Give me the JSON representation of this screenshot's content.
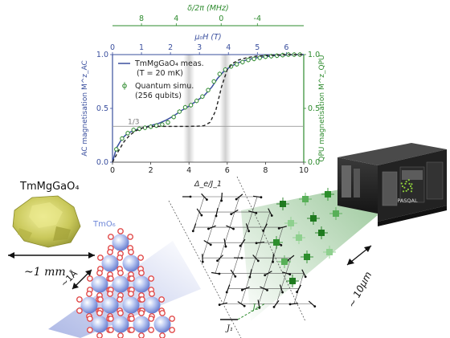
{
  "chart_data": {
    "type": "line",
    "x_bottom": {
      "label": "Δ_e/J_1",
      "ticks": [
        "0",
        "2",
        "4",
        "6",
        "8",
        "10"
      ],
      "range": [
        0,
        10
      ]
    },
    "x_top_field": {
      "label": "μ₀H (T)",
      "ticks": [
        "0",
        "1",
        "2",
        "3",
        "4",
        "5",
        "6"
      ],
      "range": [
        0,
        6.6
      ]
    },
    "x_top_freq": {
      "label": "δ/2π (MHz)",
      "ticks": [
        "8",
        "4",
        "0",
        "-4"
      ]
    },
    "y_left": {
      "label": "AC magnetisation M^z_AC",
      "ticks": [
        "0.0",
        "0.5",
        "1.0"
      ],
      "range": [
        0,
        1
      ]
    },
    "y_right": {
      "label": "QPU magnetisation M^z_QPU",
      "ticks": [
        "0.0",
        "0.5",
        "1.0"
      ],
      "range": [
        0,
        1
      ]
    },
    "plateau_label": "1/3",
    "legend": {
      "meas_line1": "TmMgGaO₄ meas.",
      "meas_line2": "(T = 20 mK)",
      "sim_line1": "Quantum simu.",
      "sim_line2": "(256 qubits)"
    },
    "series": [
      {
        "name": "TmMgGaO₄ meas.",
        "style": "solid",
        "color": "#3a4f9e",
        "x": [
          0,
          0.2,
          0.5,
          0.8,
          1.2,
          1.6,
          2.0,
          2.4,
          2.8,
          3.2,
          3.6,
          4.0,
          4.4,
          4.8,
          5.2,
          5.5,
          5.8,
          6.1,
          6.5,
          7.0,
          7.5,
          8.0,
          8.5,
          9.0,
          9.5,
          10
        ],
        "y": [
          0,
          0.13,
          0.22,
          0.27,
          0.3,
          0.32,
          0.34,
          0.36,
          0.39,
          0.43,
          0.48,
          0.52,
          0.57,
          0.62,
          0.7,
          0.78,
          0.84,
          0.88,
          0.92,
          0.95,
          0.97,
          0.98,
          0.99,
          0.995,
          1.0,
          1.0
        ]
      },
      {
        "name": "Quantum simu.",
        "style": "markers",
        "color": "#2e8b2e",
        "x": [
          0.2,
          0.5,
          0.8,
          1.1,
          1.4,
          1.7,
          2.0,
          2.3,
          2.6,
          2.9,
          3.2,
          3.5,
          3.8,
          4.1,
          4.4,
          4.7,
          5.0,
          5.3,
          5.6,
          5.9,
          6.2,
          6.5,
          6.8,
          7.1,
          7.4,
          7.7,
          8.0,
          8.3,
          8.6,
          8.9,
          9.2,
          9.5,
          9.8
        ],
        "y": [
          0.12,
          0.22,
          0.27,
          0.3,
          0.31,
          0.32,
          0.33,
          0.34,
          0.35,
          0.37,
          0.42,
          0.47,
          0.51,
          0.53,
          0.57,
          0.61,
          0.67,
          0.75,
          0.82,
          0.86,
          0.89,
          0.91,
          0.93,
          0.95,
          0.96,
          0.97,
          0.98,
          0.985,
          0.99,
          0.995,
          1.0,
          1.0,
          1.0
        ]
      },
      {
        "style": "dashed",
        "color": "#222222",
        "x": [
          0,
          0.3,
          0.6,
          0.9,
          1.2,
          1.6,
          2.0,
          2.5,
          3.0,
          3.5,
          4.0,
          4.5,
          4.8,
          5.1,
          5.4,
          5.7,
          6.0,
          6.3,
          6.6,
          7.0,
          7.5,
          8.0,
          9.0,
          10
        ],
        "y": [
          0,
          0.1,
          0.19,
          0.25,
          0.29,
          0.32,
          0.333,
          0.333,
          0.333,
          0.333,
          0.333,
          0.335,
          0.34,
          0.37,
          0.48,
          0.7,
          0.86,
          0.92,
          0.95,
          0.97,
          0.985,
          0.99,
          1.0,
          1.0
        ]
      }
    ],
    "highlight_bands_x": [
      4.0,
      5.9
    ]
  },
  "labels": {
    "crystal_name": "TmMgGaO₄",
    "crystal_scale": "~1 mm",
    "lattice_scale": "~1Å",
    "tmo6": "TmO₆",
    "j1": "J₁",
    "j2": "J₂",
    "atom_scale": "~ 10μm",
    "pasqal": "PASQAL"
  },
  "colors": {
    "axis_blue": "#3a4f9e",
    "axis_green": "#2e8b2e",
    "atom_blue": "#6d86d8",
    "oxygen_red": "#e14b4b",
    "qubit_green": "#2d8f2d"
  }
}
